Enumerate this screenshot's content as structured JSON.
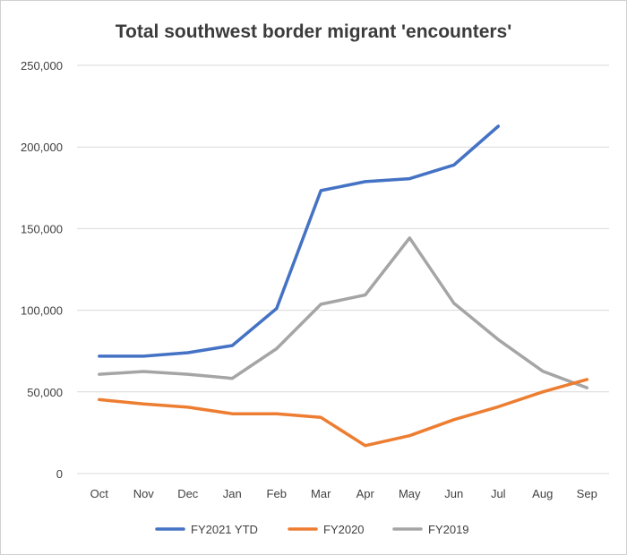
{
  "chart_data": {
    "type": "line",
    "title": "Total southwest border migrant 'encounters'",
    "xlabel": "",
    "ylabel": "",
    "categories": [
      "Oct",
      "Nov",
      "Dec",
      "Jan",
      "Feb",
      "Mar",
      "Apr",
      "May",
      "Jun",
      "Jul",
      "Aug",
      "Sep"
    ],
    "ylim": [
      0,
      250000
    ],
    "yticks": [
      0,
      50000,
      100000,
      150000,
      200000,
      250000
    ],
    "ytick_labels": [
      "0",
      "50,000",
      "100,000",
      "150,000",
      "200,000",
      "250,000"
    ],
    "grid": true,
    "legend_position": "bottom",
    "series": [
      {
        "name": "FY2021 YTD",
        "color": "#4472C4",
        "values": [
          71900,
          71900,
          74000,
          78400,
          101100,
          173300,
          178800,
          180600,
          189000,
          212700,
          null,
          null
        ]
      },
      {
        "name": "FY2020",
        "color": "#ED7D31",
        "values": [
          45300,
          42600,
          40600,
          36600,
          36600,
          34400,
          17100,
          23200,
          33000,
          40900,
          50000,
          57600
        ]
      },
      {
        "name": "FY2019",
        "color": "#A5A5A5",
        "values": [
          60800,
          62500,
          60800,
          58300,
          76500,
          103700,
          109400,
          144300,
          104300,
          82000,
          62700,
          52500
        ]
      }
    ]
  }
}
